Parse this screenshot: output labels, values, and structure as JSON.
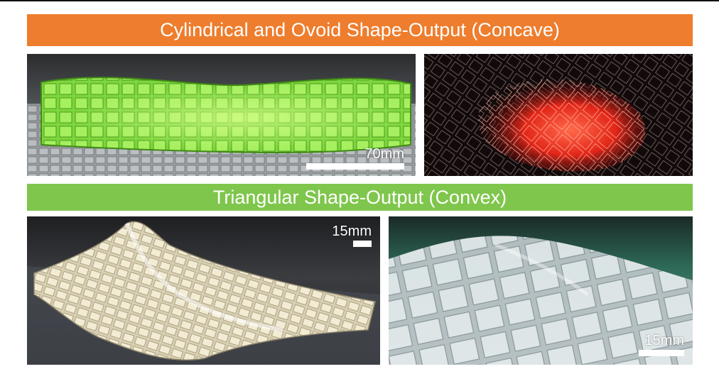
{
  "banners": {
    "concave": "Cylindrical and Ovoid Shape-Output (Concave)",
    "convex": "Triangular Shape-Output (Convex)"
  },
  "photos": {
    "green_cylinder": {
      "scale_label": "70mm"
    },
    "red_ovoid": {
      "scale_label": ""
    },
    "triangular_side": {
      "scale_label": "15mm"
    },
    "triangular_closeup": {
      "scale_label": "15mm"
    }
  },
  "colors": {
    "orange_banner": "#ee7d2d",
    "green_banner": "#7fc64c"
  }
}
